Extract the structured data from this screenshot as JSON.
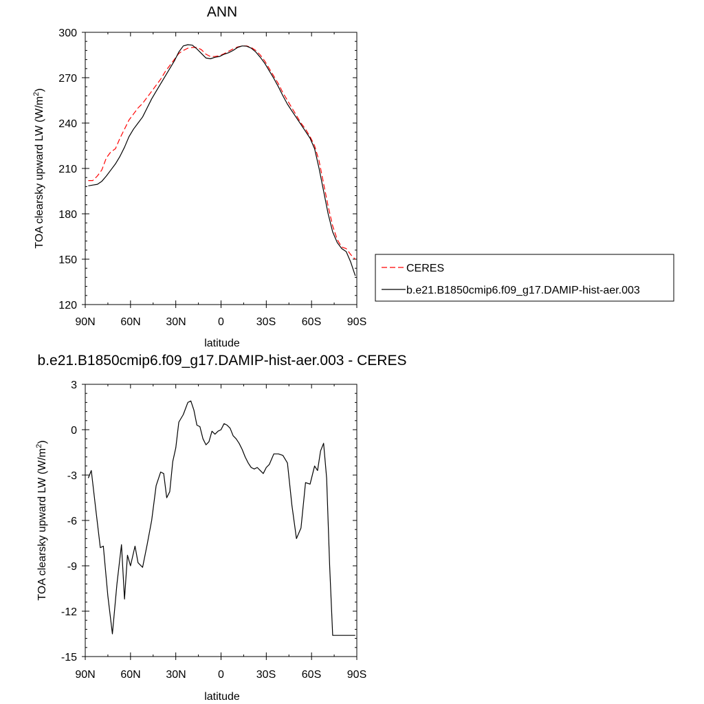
{
  "chart_data": [
    {
      "type": "line",
      "title": "ANN",
      "xlabel": "latitude",
      "ylabel": "TOA clearsky upward LW (W/m",
      "ylabel_sup": "2",
      "ylabel_end": ")",
      "xlim": [
        -90,
        90
      ],
      "ylim": [
        120,
        300
      ],
      "xticks": [
        -90,
        -60,
        -30,
        0,
        30,
        60,
        90
      ],
      "xticklabels": [
        "90N",
        "60N",
        "30N",
        "0",
        "30S",
        "60S",
        "90S"
      ],
      "yticks": [
        120,
        150,
        180,
        210,
        240,
        270,
        300
      ],
      "yticklabels": [
        "120",
        "150",
        "180",
        "210",
        "240",
        "270",
        "300"
      ],
      "grid": false,
      "legend_position": "right",
      "series": [
        {
          "name": "CERES",
          "color": "#ff0000",
          "style": "dashed",
          "x": [
            -88,
            -85,
            -82,
            -79,
            -76,
            -73,
            -70,
            -67,
            -64,
            -61,
            -58,
            -55,
            -52,
            -49,
            -46,
            -43,
            -40,
            -37,
            -34,
            -31,
            -28,
            -25,
            -22,
            -19,
            -16,
            -13,
            -10,
            -7,
            -4,
            -1,
            2,
            5,
            8,
            11,
            14,
            17,
            20,
            23,
            26,
            29,
            32,
            35,
            38,
            41,
            44,
            47,
            50,
            53,
            56,
            59,
            62,
            65,
            68,
            71,
            74,
            77,
            80,
            83,
            86,
            89
          ],
          "y": [
            202,
            202,
            205,
            209,
            217,
            221,
            223,
            230,
            236,
            242,
            246,
            250,
            253,
            257,
            261,
            265,
            269,
            274,
            278,
            282,
            286,
            288,
            289.5,
            290,
            290,
            288.5,
            285.5,
            284,
            284,
            284.5,
            285.8,
            287.5,
            289,
            290.3,
            291,
            291,
            290,
            288,
            285,
            281,
            276,
            271,
            266,
            260,
            255,
            250,
            245,
            240,
            236,
            231,
            225,
            215,
            200,
            185,
            172,
            163,
            158,
            157,
            153,
            150
          ]
        },
        {
          "name": "b.e21.B1850cmip6.f09_g17.DAMIP-hist-aer.003",
          "color": "#000000",
          "style": "solid",
          "x": [
            -88,
            -85,
            -82,
            -79,
            -76,
            -73,
            -70,
            -67,
            -64,
            -61,
            -58,
            -55,
            -52,
            -49,
            -46,
            -43,
            -40,
            -37,
            -34,
            -31,
            -28,
            -25,
            -22,
            -19,
            -16,
            -13,
            -10,
            -7,
            -4,
            -1,
            2,
            5,
            8,
            11,
            14,
            17,
            20,
            23,
            26,
            29,
            32,
            35,
            38,
            41,
            44,
            47,
            50,
            53,
            56,
            59,
            62,
            65,
            68,
            71,
            74,
            77,
            80,
            83,
            86,
            89
          ],
          "y": [
            198.5,
            199,
            199.5,
            201.5,
            205,
            209,
            213,
            218,
            224,
            231,
            236,
            240,
            244,
            250,
            256,
            261,
            266,
            271,
            276,
            281,
            287,
            291,
            291.8,
            291.5,
            289,
            286,
            283,
            282.5,
            283.5,
            284,
            285.5,
            286.5,
            288,
            290,
            291,
            290.8,
            289.5,
            287,
            283.5,
            279.5,
            274.5,
            269.5,
            264,
            258,
            252.5,
            248,
            243.5,
            239,
            234.5,
            230,
            223,
            210,
            195,
            180,
            168,
            161,
            157,
            155,
            148,
            139
          ]
        }
      ]
    },
    {
      "type": "line",
      "title": "b.e21.B1850cmip6.f09_g17.DAMIP-hist-aer.003 - CERES",
      "xlabel": "latitude",
      "ylabel": "TOA clearsky upward LW (W/m",
      "ylabel_sup": "2",
      "ylabel_end": ")",
      "xlim": [
        -90,
        90
      ],
      "ylim": [
        -15,
        3
      ],
      "xticks": [
        -90,
        -60,
        -30,
        0,
        30,
        60,
        90
      ],
      "xticklabels": [
        "90N",
        "60N",
        "30N",
        "0",
        "30S",
        "60S",
        "90S"
      ],
      "yticks": [
        -15,
        -12,
        -9,
        -6,
        -3,
        0,
        3
      ],
      "yticklabels": [
        "-15",
        "-12",
        "-9",
        "-6",
        "-3",
        "0",
        "3"
      ],
      "grid": false,
      "series": [
        {
          "color": "#000000",
          "style": "solid",
          "x": [
            -88,
            -86,
            -83,
            -80,
            -78,
            -75,
            -72,
            -69,
            -66,
            -64,
            -62,
            -60,
            -57,
            -55,
            -52,
            -49,
            -46,
            -43,
            -40,
            -38,
            -36,
            -34,
            -32,
            -30,
            -28,
            -25,
            -22,
            -20,
            -18,
            -16,
            -14,
            -12,
            -10,
            -8,
            -6,
            -4,
            -2,
            0,
            2,
            4,
            6,
            8,
            10,
            12,
            14,
            16,
            18,
            20,
            22,
            24,
            26,
            28,
            30,
            32,
            35,
            38,
            41,
            44,
            47,
            50,
            53,
            56,
            59,
            62,
            64,
            66,
            68,
            70,
            72,
            74,
            76,
            78,
            80,
            82,
            84,
            86,
            88,
            89
          ],
          "y": [
            -3.2,
            -2.7,
            -5.3,
            -7.8,
            -7.7,
            -11.0,
            -13.5,
            -10.2,
            -7.6,
            -11.2,
            -8.3,
            -9.0,
            -7.7,
            -8.8,
            -9.1,
            -7.6,
            -6.0,
            -3.7,
            -2.8,
            -2.9,
            -4.5,
            -4.1,
            -2.1,
            -1.2,
            0.5,
            1.0,
            1.8,
            1.9,
            1.3,
            0.3,
            0.2,
            -0.6,
            -1.0,
            -0.8,
            -0.1,
            -0.3,
            -0.1,
            0.0,
            0.4,
            0.3,
            0.1,
            -0.4,
            -0.6,
            -0.9,
            -1.3,
            -1.8,
            -2.2,
            -2.5,
            -2.6,
            -2.5,
            -2.7,
            -2.9,
            -2.5,
            -2.3,
            -1.6,
            -1.6,
            -1.7,
            -2.2,
            -5.0,
            -7.2,
            -6.5,
            -3.5,
            -3.6,
            -2.4,
            -2.7,
            -1.4,
            -0.9,
            -3.2,
            -9.0,
            -13.6,
            -13.6,
            -13.6,
            -13.6,
            -13.6,
            -13.6,
            -13.6,
            -13.6,
            -13.6
          ]
        }
      ]
    }
  ]
}
